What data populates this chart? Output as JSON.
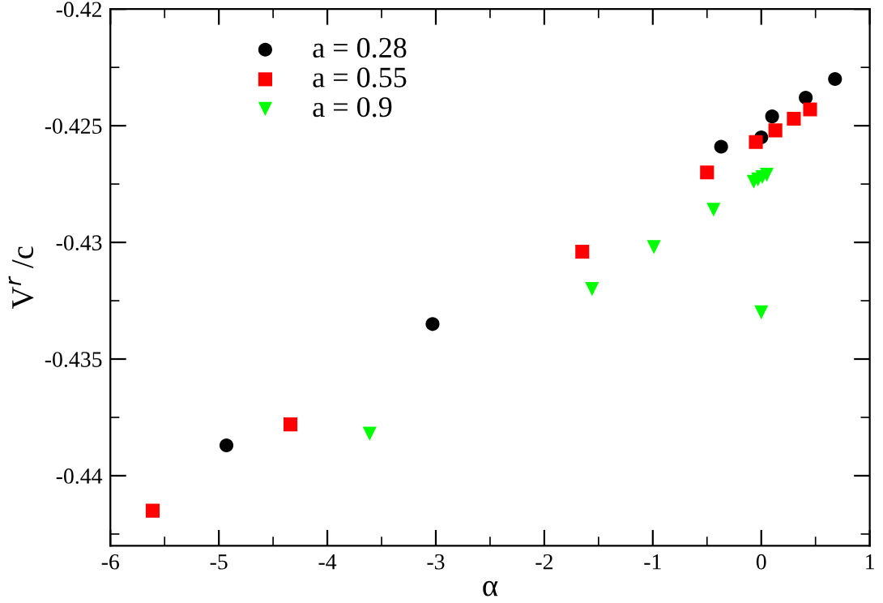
{
  "chart_data": {
    "type": "scatter",
    "xlabel": "α",
    "ylabel": "V$^{r}$ /c",
    "xlim": [
      -6,
      1
    ],
    "xticks": [
      -6,
      -5,
      -4,
      -3,
      -2,
      -1,
      0,
      1
    ],
    "ylim": [
      -0.443,
      -0.42
    ],
    "yticks": [
      -0.44,
      -0.435,
      -0.43,
      -0.425,
      -0.42
    ],
    "grid": false,
    "legend": "top left",
    "series": [
      {
        "name": "a = 0.28",
        "color": "#000000",
        "marker": "circle",
        "x": [
          -4.93,
          -3.03,
          -0.37,
          0.0,
          0.1,
          0.41,
          0.68
        ],
        "values": [
          -0.4387,
          -0.4335,
          -0.4259,
          -0.4255,
          -0.4246,
          -0.4238,
          -0.423
        ]
      },
      {
        "name": "a = 0.55",
        "color": "#ff0000",
        "marker": "square",
        "x": [
          -5.61,
          -4.34,
          -1.65,
          -0.5,
          -0.05,
          0.13,
          0.3,
          0.45
        ],
        "values": [
          -0.4415,
          -0.4378,
          -0.4304,
          -0.427,
          -0.4257,
          -0.4252,
          -0.4247,
          -0.4243
        ]
      },
      {
        "name": "a = 0.9",
        "color": "#00ff00",
        "marker": "triangle",
        "x": [
          -3.61,
          -1.56,
          -0.99,
          -0.44,
          -0.07,
          -0.03,
          0.01,
          0.05,
          0.0
        ],
        "values": [
          -0.4382,
          -0.432,
          -0.4302,
          -0.4286,
          -0.4274,
          -0.4273,
          -0.4272,
          -0.4271,
          -0.433
        ]
      }
    ]
  }
}
